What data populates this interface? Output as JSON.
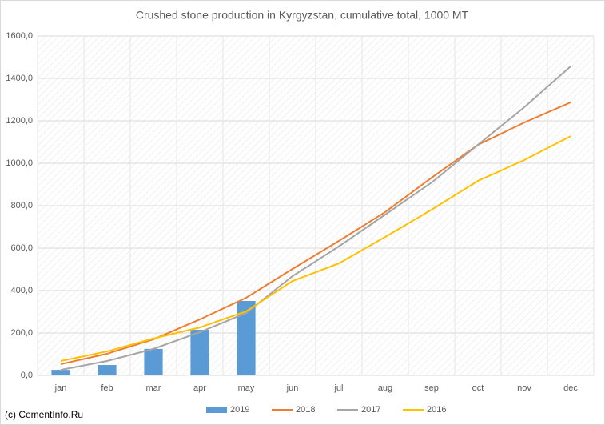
{
  "chart_data": {
    "type": "bar-line",
    "title": "Crushed stone production in Kyrgyzstan, cumulative total, 1000 MT",
    "annotation": "(c) CementInfo.Ru",
    "categories": [
      "jan",
      "feb",
      "mar",
      "apr",
      "may",
      "jun",
      "jul",
      "aug",
      "sep",
      "oct",
      "nov",
      "dec"
    ],
    "series": [
      {
        "name": "2019",
        "type": "bar",
        "color": "#5b9bd5",
        "values": [
          26,
          49,
          125,
          215,
          351,
          null,
          null,
          null,
          null,
          null,
          null,
          null
        ]
      },
      {
        "name": "2018",
        "type": "line",
        "color": "#ed7d31",
        "values": [
          53,
          102,
          170,
          264,
          366,
          502,
          634,
          770,
          932,
          1087,
          1192,
          1287
        ]
      },
      {
        "name": "2017",
        "type": "line",
        "color": "#a5a5a5",
        "values": [
          26,
          68,
          125,
          204,
          294,
          468,
          608,
          758,
          909,
          1087,
          1264,
          1457
        ]
      },
      {
        "name": "2016",
        "type": "line",
        "color": "#ffc000",
        "values": [
          68,
          113,
          174,
          226,
          302,
          445,
          528,
          653,
          781,
          917,
          1015,
          1128
        ]
      }
    ],
    "ylim": [
      0,
      1600
    ],
    "yticks": [
      {
        "value": 0,
        "label": "0,0"
      },
      {
        "value": 200,
        "label": "200,0"
      },
      {
        "value": 400,
        "label": "400,0"
      },
      {
        "value": 600,
        "label": "600,0"
      },
      {
        "value": 800,
        "label": "800,0"
      },
      {
        "value": 1000,
        "label": "1000,0"
      },
      {
        "value": 1200,
        "label": "1200,0"
      },
      {
        "value": 1400,
        "label": "1400,0"
      },
      {
        "value": 1600,
        "label": "1600,0"
      }
    ],
    "grid": true,
    "legend": "bottom"
  }
}
